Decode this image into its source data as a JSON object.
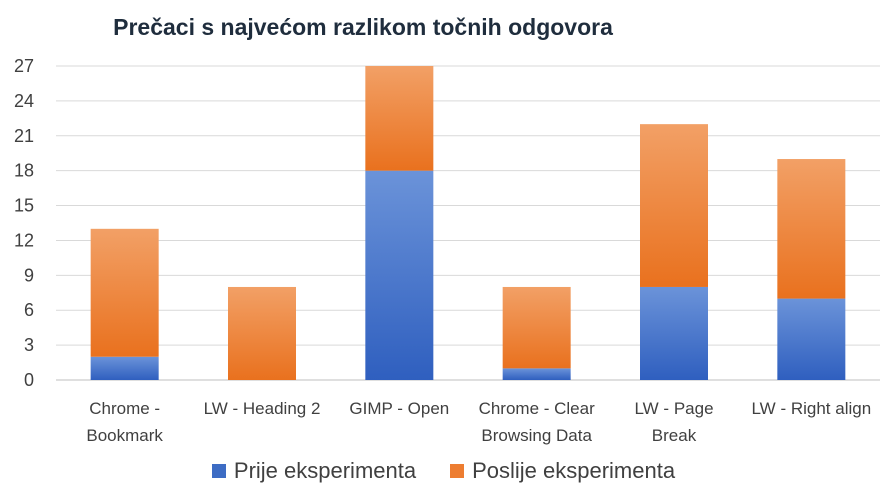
{
  "chart_data": {
    "type": "bar",
    "stacked": true,
    "title": "Prečaci s najvećom razlikom točnih odgovora",
    "xlabel": "",
    "ylabel": "",
    "categories": [
      [
        "Chrome -",
        "Bookmark"
      ],
      [
        "LW - Heading 2"
      ],
      [
        "GIMP - Open"
      ],
      [
        "Chrome - Clear",
        "Browsing Data"
      ],
      [
        "LW - Page",
        "Break"
      ],
      [
        "LW - Right align"
      ]
    ],
    "series": [
      {
        "name": "Prije eksperimenta",
        "color": "#4472c4",
        "values": [
          2,
          0,
          18,
          1,
          8,
          7
        ]
      },
      {
        "name": "Poslije eksperimenta",
        "color": "#ed7d31",
        "values": [
          11,
          8,
          9,
          7,
          14,
          12
        ]
      }
    ],
    "ylim": [
      0,
      27
    ],
    "yticks": [
      0,
      3,
      6,
      9,
      12,
      15,
      18,
      21,
      24,
      27
    ],
    "grid": true,
    "legend_position": "bottom"
  }
}
